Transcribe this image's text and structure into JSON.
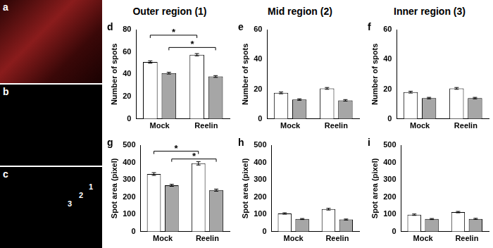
{
  "column_titles": [
    "Outer region (1)",
    "Mid region (2)",
    "Inner region (3)"
  ],
  "image_panels": [
    {
      "label": "a"
    },
    {
      "label": "b"
    },
    {
      "label": "c",
      "region_labels": [
        "1",
        "2",
        "3"
      ]
    }
  ],
  "chart_data": [
    {
      "panel": "d",
      "type": "bar",
      "y_label": "Number of spots",
      "categories": [
        "Mock",
        "Reelin"
      ],
      "series": [
        {
          "color": "#ffffff",
          "values": [
            51,
            57.5
          ],
          "errors": [
            1,
            1
          ]
        },
        {
          "color": "#a6a6a6",
          "values": [
            41,
            38
          ],
          "errors": [
            0.8,
            0.8
          ]
        }
      ],
      "ylim": [
        0,
        80
      ],
      "yticks": [
        0,
        20,
        40,
        60,
        80
      ],
      "grid": false,
      "significance": [
        {
          "series": 0,
          "y": 75,
          "label": "*"
        },
        {
          "series": 1,
          "y": 64,
          "label": "*"
        }
      ]
    },
    {
      "panel": "e",
      "type": "bar",
      "y_label": "Number of spots",
      "categories": [
        "Mock",
        "Reelin"
      ],
      "series": [
        {
          "color": "#ffffff",
          "values": [
            17.5,
            20.5
          ],
          "errors": [
            0.6,
            0.6
          ]
        },
        {
          "color": "#a6a6a6",
          "values": [
            13,
            12.5
          ],
          "errors": [
            0.5,
            0.5
          ]
        }
      ],
      "ylim": [
        0,
        60
      ],
      "yticks": [
        0,
        20,
        40,
        60
      ],
      "grid": false
    },
    {
      "panel": "f",
      "type": "bar",
      "y_label": "Number of spots",
      "categories": [
        "Mock",
        "Reelin"
      ],
      "series": [
        {
          "color": "#ffffff",
          "values": [
            18,
            20.5
          ],
          "errors": [
            0.6,
            0.6
          ]
        },
        {
          "color": "#a6a6a6",
          "values": [
            14,
            14
          ],
          "errors": [
            0.5,
            0.5
          ]
        }
      ],
      "ylim": [
        0,
        60
      ],
      "yticks": [
        0,
        20,
        40,
        60
      ],
      "grid": false
    },
    {
      "panel": "g",
      "type": "bar",
      "y_label": "Spot area (pixel)",
      "categories": [
        "Mock",
        "Reelin"
      ],
      "series": [
        {
          "color": "#ffffff",
          "values": [
            333,
            395
          ],
          "errors": [
            8,
            10
          ]
        },
        {
          "color": "#a6a6a6",
          "values": [
            268,
            240
          ],
          "errors": [
            6,
            6
          ]
        }
      ],
      "ylim": [
        0,
        500
      ],
      "yticks": [
        0,
        100,
        200,
        300,
        400,
        500
      ],
      "grid": false,
      "significance": [
        {
          "series": 0,
          "y": 465,
          "label": "*"
        },
        {
          "series": 1,
          "y": 420,
          "label": "*"
        }
      ]
    },
    {
      "panel": "h",
      "type": "bar",
      "y_label": "Spot area (pixel)",
      "categories": [
        "Mock",
        "Reelin"
      ],
      "series": [
        {
          "color": "#ffffff",
          "values": [
            105,
            130
          ],
          "errors": [
            4,
            5
          ]
        },
        {
          "color": "#a6a6a6",
          "values": [
            73,
            70
          ],
          "errors": [
            3,
            3
          ]
        }
      ],
      "ylim": [
        0,
        500
      ],
      "yticks": [
        0,
        100,
        200,
        300,
        400,
        500
      ],
      "grid": false
    },
    {
      "panel": "i",
      "type": "bar",
      "y_label": "Spot area (pixel)",
      "categories": [
        "Mock",
        "Reelin"
      ],
      "series": [
        {
          "color": "#ffffff",
          "values": [
            98,
            113
          ],
          "errors": [
            4,
            4
          ]
        },
        {
          "color": "#a6a6a6",
          "values": [
            73,
            74
          ],
          "errors": [
            3,
            3
          ]
        }
      ],
      "ylim": [
        0,
        500
      ],
      "yticks": [
        0,
        100,
        200,
        300,
        400,
        500
      ],
      "grid": false
    }
  ]
}
